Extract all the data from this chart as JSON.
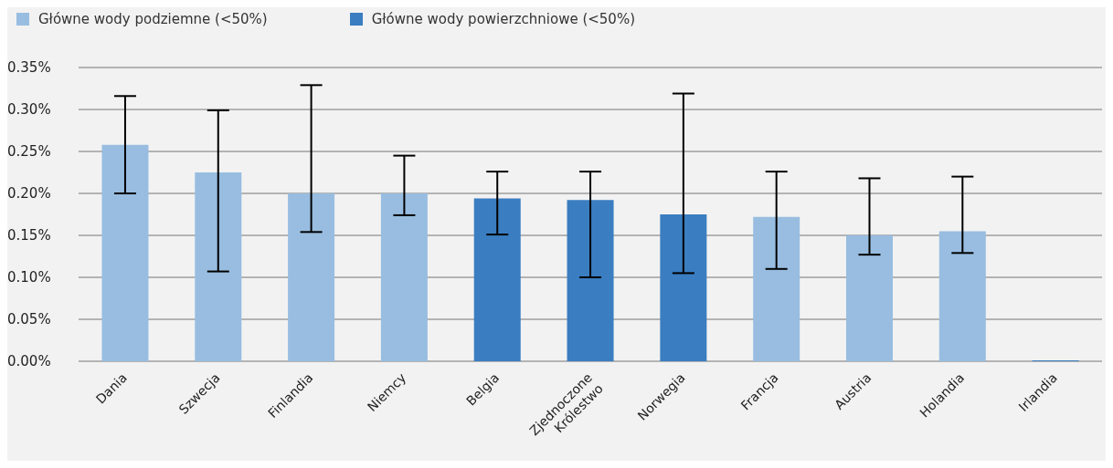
{
  "chart_data": {
    "type": "bar",
    "stacked": true,
    "categories": [
      "Dania",
      "Szwecja",
      "Finlandia",
      "Niemcy",
      "Belgia",
      "Zjednoczone Królestwo",
      "Norwegia",
      "Francja",
      "Austria",
      "Holandia",
      "Irlandia"
    ],
    "series": [
      {
        "name": "Główne wody podziemne (<50%)",
        "color": "#98bde0",
        "values": [
          0.258,
          0.225,
          0.2,
          0.2,
          null,
          null,
          null,
          0.172,
          0.15,
          0.155,
          null
        ],
        "errors": [
          [
            0.2,
            0.316
          ],
          [
            0.107,
            0.299
          ],
          [
            0.154,
            0.329
          ],
          [
            0.174,
            0.245
          ],
          null,
          null,
          null,
          [
            0.11,
            0.226
          ],
          [
            0.127,
            0.218
          ],
          [
            0.129,
            0.22
          ],
          null
        ]
      },
      {
        "name": "Główne wody powierzchniowe (<50%)",
        "color": "#3a7dc1",
        "values": [
          null,
          null,
          null,
          null,
          0.194,
          0.192,
          0.175,
          null,
          null,
          null,
          0.001
        ],
        "errors": [
          null,
          null,
          null,
          null,
          [
            0.151,
            0.226
          ],
          [
            0.1,
            0.226
          ],
          [
            0.105,
            0.319
          ],
          null,
          null,
          null,
          null
        ]
      }
    ],
    "ylim": [
      0,
      0.35
    ],
    "yticks": [
      {
        "value": 0,
        "label": "0.00%"
      },
      {
        "value": 0.05,
        "label": "0.05%"
      },
      {
        "value": 0.1,
        "label": "0.10%"
      },
      {
        "value": 0.15,
        "label": "0.15%"
      },
      {
        "value": 0.2,
        "label": "0.20%"
      },
      {
        "value": 0.25,
        "label": "0.25%"
      },
      {
        "value": 0.3,
        "label": "0.30%"
      },
      {
        "value": 0.35,
        "label": "0.35%"
      }
    ],
    "grid": "y",
    "legend": "top left"
  }
}
